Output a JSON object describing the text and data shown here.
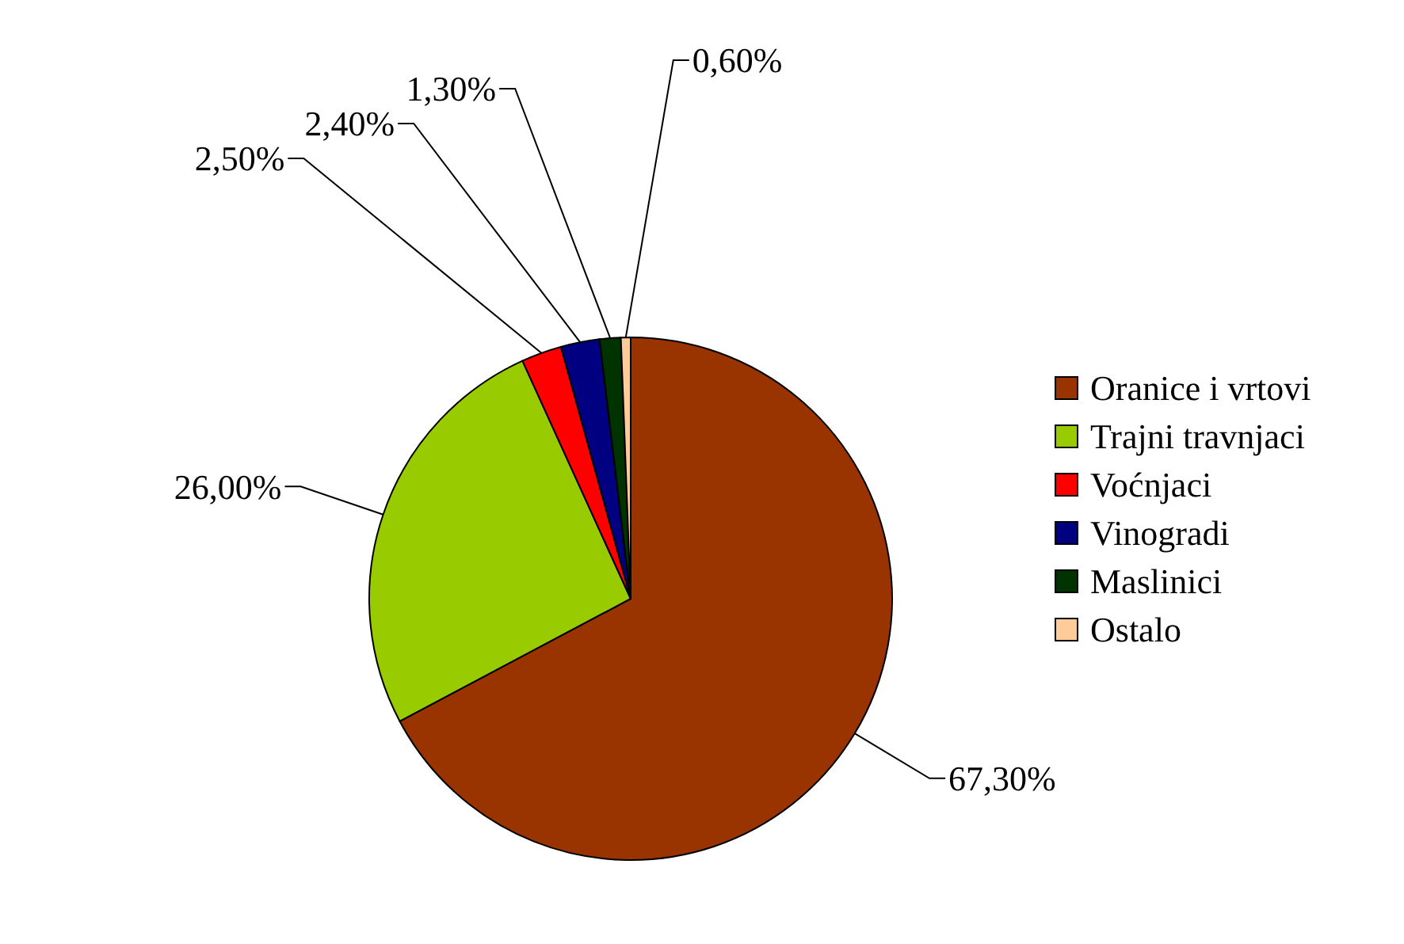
{
  "chart_data": {
    "type": "pie",
    "categories": [
      "Oranice i vrtovi",
      "Trajni travnjaci",
      "Voćnjaci",
      "Vinogradi",
      "Maslinici",
      "Ostalo"
    ],
    "values": [
      67.3,
      26.0,
      2.5,
      2.4,
      1.3,
      0.6
    ],
    "colors": [
      "#993300",
      "#99cc00",
      "#ff0000",
      "#000080",
      "#003300",
      "#ffcc99"
    ],
    "value_labels": [
      "67,30%",
      "26,00%",
      "2,50%",
      "2,40%",
      "1,30%",
      "0,60%"
    ],
    "legend": "right"
  }
}
